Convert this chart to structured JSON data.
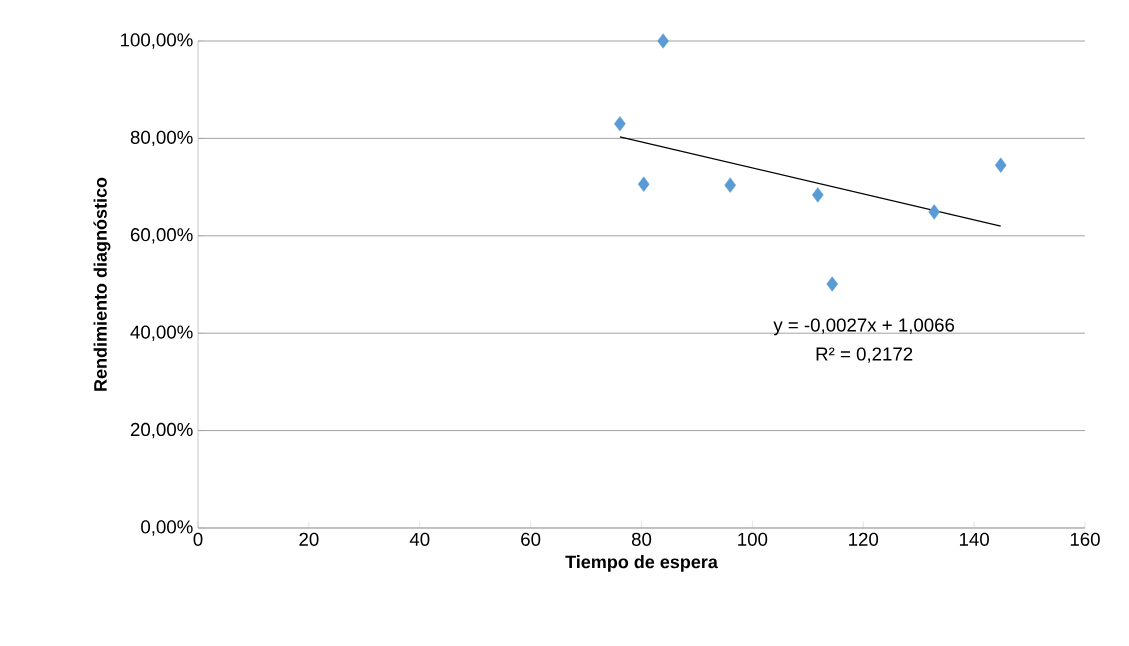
{
  "chart_data": {
    "type": "scatter",
    "xlabel": "Tiempo de espera",
    "ylabel": "Rendimiento diagnóstico",
    "series": [
      {
        "color": "#5b9bd5",
        "marker": "diamond",
        "x": [
          76.1,
          83.9,
          80.4,
          96.0,
          111.8,
          114.4,
          132.8,
          144.8
        ],
        "values": [
          83.0,
          100.0,
          70.6,
          70.4,
          68.4,
          50.1,
          64.9,
          74.5
        ]
      },
      {
        "type": "line",
        "color": "#000000",
        "marker": "none",
        "x": [
          76.1,
          144.8
        ],
        "values": [
          80.3,
          62.0
        ]
      }
    ],
    "xlim": [
      0,
      160
    ],
    "xticks": [
      0,
      20,
      40,
      60,
      80,
      100,
      120,
      140,
      160
    ],
    "ylim": [
      0,
      100
    ],
    "yticks": [
      {
        "value": 0,
        "label": "0,00%"
      },
      {
        "value": 20,
        "label": "20,00%"
      },
      {
        "value": 40,
        "label": "40,00%"
      },
      {
        "value": 60,
        "label": "60,00%"
      },
      {
        "value": 80,
        "label": "80,00%"
      },
      {
        "value": 100,
        "label": "100,00%"
      }
    ],
    "grid": "y",
    "annotations": [
      "y = -0,0027x + 1,0066",
      "R² = 0,2172"
    ]
  }
}
